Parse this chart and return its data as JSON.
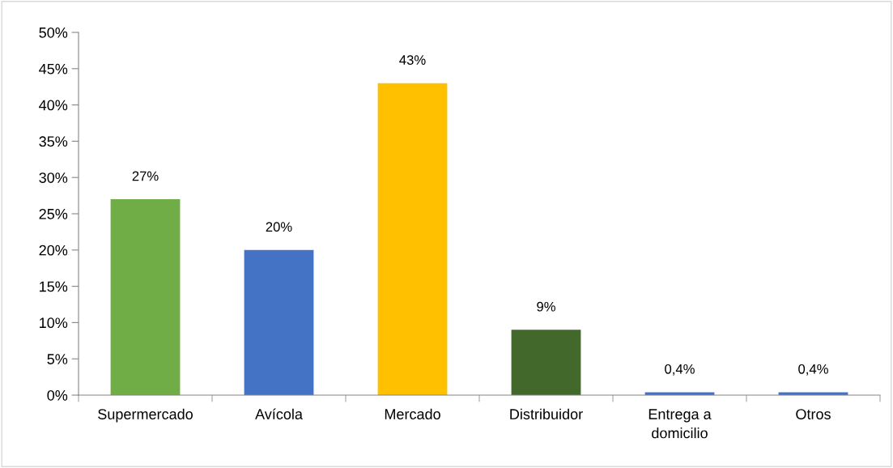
{
  "chart_data": {
    "type": "bar",
    "categories": [
      "Supermercado",
      "Avícola",
      "Mercado",
      "Distribuidor",
      "Entrega a\ndomicilio",
      "Otros"
    ],
    "values": [
      27,
      20,
      43,
      9,
      0.4,
      0.4
    ],
    "colors": [
      "#70ad47",
      "#4472c4",
      "#ffc000",
      "#43682b",
      "#4472c4",
      "#4472c4"
    ],
    "value_labels": [
      "27%",
      "20%",
      "43%",
      "9%",
      "0,4%",
      "0,4%"
    ],
    "ylim": [
      0,
      50
    ],
    "yticks": [
      {
        "value": 0,
        "label": "0%"
      },
      {
        "value": 5,
        "label": "5%"
      },
      {
        "value": 10,
        "label": "10%"
      },
      {
        "value": 15,
        "label": "15%"
      },
      {
        "value": 20,
        "label": "20%"
      },
      {
        "value": 25,
        "label": "25%"
      },
      {
        "value": 30,
        "label": "30%"
      },
      {
        "value": 35,
        "label": "35%"
      },
      {
        "value": 40,
        "label": "40%"
      },
      {
        "value": 45,
        "label": "45%"
      },
      {
        "value": 50,
        "label": "50%"
      }
    ],
    "grid": false,
    "legend": false
  }
}
